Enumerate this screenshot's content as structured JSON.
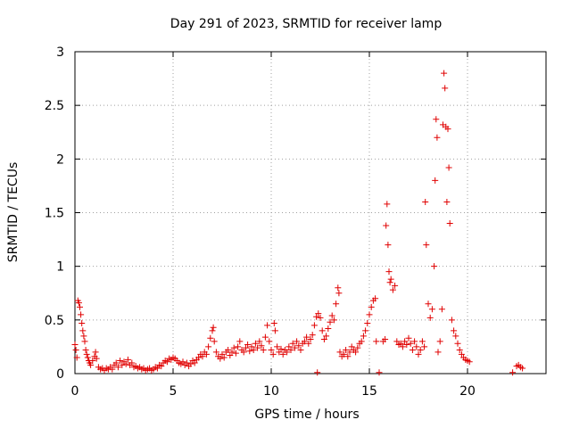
{
  "chart_data": {
    "type": "scatter",
    "title": "Day 291 of 2023, SRMTID for receiver lamp",
    "xlabel": "GPS time / hours",
    "ylabel": "SRMTID / TECUs",
    "xlim": [
      0,
      24
    ],
    "ylim": [
      0,
      3
    ],
    "xticks": [
      0,
      5,
      10,
      15,
      20
    ],
    "xtick_labels": [
      "0",
      "5",
      "10",
      "15",
      "20"
    ],
    "yticks": [
      0,
      0.5,
      1,
      1.5,
      2,
      2.5,
      3
    ],
    "ytick_labels": [
      "0",
      "0.5",
      "1",
      "1.5",
      "2",
      "2.5",
      "3"
    ],
    "grid": true,
    "marker": "plus",
    "color": "#e00000",
    "series": [
      {
        "name": "lamp",
        "points": [
          [
            0.0,
            0.27
          ],
          [
            0.05,
            0.22
          ],
          [
            0.1,
            0.15
          ],
          [
            0.15,
            0.68
          ],
          [
            0.2,
            0.66
          ],
          [
            0.25,
            0.62
          ],
          [
            0.3,
            0.55
          ],
          [
            0.35,
            0.47
          ],
          [
            0.4,
            0.4
          ],
          [
            0.45,
            0.35
          ],
          [
            0.5,
            0.3
          ],
          [
            0.55,
            0.22
          ],
          [
            0.6,
            0.18
          ],
          [
            0.65,
            0.15
          ],
          [
            0.7,
            0.12
          ],
          [
            0.75,
            0.1
          ],
          [
            0.8,
            0.08
          ],
          [
            0.9,
            0.12
          ],
          [
            1.0,
            0.16
          ],
          [
            1.05,
            0.2
          ],
          [
            1.1,
            0.14
          ],
          [
            1.2,
            0.06
          ],
          [
            1.3,
            0.04
          ],
          [
            1.4,
            0.05
          ],
          [
            1.5,
            0.03
          ],
          [
            1.6,
            0.05
          ],
          [
            1.7,
            0.04
          ],
          [
            1.8,
            0.06
          ],
          [
            1.9,
            0.04
          ],
          [
            2.0,
            0.08
          ],
          [
            2.1,
            0.1
          ],
          [
            2.2,
            0.06
          ],
          [
            2.3,
            0.12
          ],
          [
            2.4,
            0.08
          ],
          [
            2.5,
            0.11
          ],
          [
            2.6,
            0.09
          ],
          [
            2.7,
            0.13
          ],
          [
            2.8,
            0.08
          ],
          [
            2.9,
            0.1
          ],
          [
            3.0,
            0.06
          ],
          [
            3.1,
            0.07
          ],
          [
            3.2,
            0.05
          ],
          [
            3.3,
            0.06
          ],
          [
            3.4,
            0.04
          ],
          [
            3.5,
            0.05
          ],
          [
            3.6,
            0.03
          ],
          [
            3.7,
            0.04
          ],
          [
            3.8,
            0.05
          ],
          [
            3.9,
            0.03
          ],
          [
            4.0,
            0.04
          ],
          [
            4.1,
            0.06
          ],
          [
            4.2,
            0.05
          ],
          [
            4.3,
            0.08
          ],
          [
            4.4,
            0.07
          ],
          [
            4.5,
            0.1
          ],
          [
            4.6,
            0.12
          ],
          [
            4.7,
            0.11
          ],
          [
            4.8,
            0.14
          ],
          [
            4.9,
            0.13
          ],
          [
            5.0,
            0.15
          ],
          [
            5.1,
            0.14
          ],
          [
            5.2,
            0.12
          ],
          [
            5.3,
            0.1
          ],
          [
            5.4,
            0.09
          ],
          [
            5.5,
            0.11
          ],
          [
            5.6,
            0.08
          ],
          [
            5.7,
            0.1
          ],
          [
            5.8,
            0.07
          ],
          [
            5.9,
            0.09
          ],
          [
            6.0,
            0.12
          ],
          [
            6.1,
            0.1
          ],
          [
            6.2,
            0.13
          ],
          [
            6.3,
            0.15
          ],
          [
            6.4,
            0.18
          ],
          [
            6.5,
            0.16
          ],
          [
            6.6,
            0.2
          ],
          [
            6.7,
            0.18
          ],
          [
            6.8,
            0.25
          ],
          [
            6.9,
            0.33
          ],
          [
            7.0,
            0.4
          ],
          [
            7.05,
            0.43
          ],
          [
            7.1,
            0.3
          ],
          [
            7.2,
            0.2
          ],
          [
            7.3,
            0.16
          ],
          [
            7.4,
            0.14
          ],
          [
            7.5,
            0.18
          ],
          [
            7.6,
            0.15
          ],
          [
            7.7,
            0.2
          ],
          [
            7.8,
            0.22
          ],
          [
            7.9,
            0.17
          ],
          [
            8.0,
            0.2
          ],
          [
            8.1,
            0.24
          ],
          [
            8.2,
            0.19
          ],
          [
            8.3,
            0.25
          ],
          [
            8.4,
            0.3
          ],
          [
            8.5,
            0.22
          ],
          [
            8.6,
            0.2
          ],
          [
            8.7,
            0.24
          ],
          [
            8.8,
            0.27
          ],
          [
            8.9,
            0.21
          ],
          [
            9.0,
            0.25
          ],
          [
            9.1,
            0.22
          ],
          [
            9.2,
            0.28
          ],
          [
            9.3,
            0.24
          ],
          [
            9.4,
            0.3
          ],
          [
            9.5,
            0.26
          ],
          [
            9.6,
            0.22
          ],
          [
            9.7,
            0.34
          ],
          [
            9.8,
            0.45
          ],
          [
            9.9,
            0.3
          ],
          [
            10.0,
            0.22
          ],
          [
            10.1,
            0.18
          ],
          [
            10.15,
            0.47
          ],
          [
            10.2,
            0.4
          ],
          [
            10.3,
            0.25
          ],
          [
            10.4,
            0.2
          ],
          [
            10.5,
            0.23
          ],
          [
            10.6,
            0.18
          ],
          [
            10.7,
            0.22
          ],
          [
            10.8,
            0.2
          ],
          [
            10.9,
            0.25
          ],
          [
            11.0,
            0.22
          ],
          [
            11.1,
            0.28
          ],
          [
            11.2,
            0.24
          ],
          [
            11.3,
            0.3
          ],
          [
            11.4,
            0.26
          ],
          [
            11.5,
            0.22
          ],
          [
            11.6,
            0.28
          ],
          [
            11.7,
            0.3
          ],
          [
            11.8,
            0.34
          ],
          [
            11.9,
            0.28
          ],
          [
            12.0,
            0.32
          ],
          [
            12.1,
            0.36
          ],
          [
            12.2,
            0.45
          ],
          [
            12.3,
            0.53
          ],
          [
            12.4,
            0.56
          ],
          [
            12.5,
            0.52
          ],
          [
            12.6,
            0.4
          ],
          [
            12.7,
            0.32
          ],
          [
            12.8,
            0.35
          ],
          [
            12.9,
            0.42
          ],
          [
            13.0,
            0.48
          ],
          [
            13.1,
            0.54
          ],
          [
            13.2,
            0.5
          ],
          [
            13.3,
            0.65
          ],
          [
            13.4,
            0.8
          ],
          [
            13.45,
            0.75
          ],
          [
            13.5,
            0.2
          ],
          [
            13.6,
            0.16
          ],
          [
            13.7,
            0.18
          ],
          [
            13.8,
            0.22
          ],
          [
            13.9,
            0.16
          ],
          [
            14.0,
            0.2
          ],
          [
            14.1,
            0.25
          ],
          [
            14.2,
            0.22
          ],
          [
            14.3,
            0.2
          ],
          [
            14.4,
            0.24
          ],
          [
            14.5,
            0.28
          ],
          [
            14.6,
            0.3
          ],
          [
            14.7,
            0.35
          ],
          [
            14.8,
            0.4
          ],
          [
            14.9,
            0.47
          ],
          [
            15.0,
            0.55
          ],
          [
            15.1,
            0.62
          ],
          [
            15.2,
            0.68
          ],
          [
            15.3,
            0.7
          ],
          [
            15.35,
            0.3
          ],
          [
            15.5,
            0.01
          ],
          [
            15.7,
            0.3
          ],
          [
            15.8,
            0.32
          ],
          [
            15.85,
            1.38
          ],
          [
            15.9,
            1.58
          ],
          [
            15.95,
            1.2
          ],
          [
            16.0,
            0.95
          ],
          [
            16.05,
            0.85
          ],
          [
            16.1,
            0.88
          ],
          [
            16.2,
            0.78
          ],
          [
            16.3,
            0.82
          ],
          [
            16.4,
            0.3
          ],
          [
            16.5,
            0.27
          ],
          [
            16.6,
            0.28
          ],
          [
            16.7,
            0.25
          ],
          [
            16.8,
            0.3
          ],
          [
            16.9,
            0.27
          ],
          [
            17.0,
            0.33
          ],
          [
            17.1,
            0.28
          ],
          [
            17.2,
            0.22
          ],
          [
            17.3,
            0.3
          ],
          [
            17.4,
            0.25
          ],
          [
            17.5,
            0.18
          ],
          [
            17.6,
            0.22
          ],
          [
            17.7,
            0.3
          ],
          [
            17.8,
            0.25
          ],
          [
            17.85,
            1.6
          ],
          [
            17.9,
            1.2
          ],
          [
            18.0,
            0.65
          ],
          [
            18.1,
            0.52
          ],
          [
            18.2,
            0.6
          ],
          [
            18.3,
            1.0
          ],
          [
            18.35,
            1.8
          ],
          [
            18.4,
            2.37
          ],
          [
            18.45,
            2.2
          ],
          [
            18.5,
            0.2
          ],
          [
            18.6,
            0.3
          ],
          [
            18.7,
            0.6
          ],
          [
            18.75,
            2.32
          ],
          [
            18.8,
            2.8
          ],
          [
            18.85,
            2.66
          ],
          [
            18.9,
            2.3
          ],
          [
            18.95,
            1.6
          ],
          [
            19.0,
            2.28
          ],
          [
            19.05,
            1.92
          ],
          [
            19.1,
            1.4
          ],
          [
            19.2,
            0.5
          ],
          [
            19.3,
            0.4
          ],
          [
            19.4,
            0.35
          ],
          [
            19.5,
            0.28
          ],
          [
            19.6,
            0.22
          ],
          [
            19.7,
            0.18
          ],
          [
            19.8,
            0.15
          ],
          [
            19.9,
            0.13
          ],
          [
            20.0,
            0.12
          ],
          [
            20.1,
            0.11
          ],
          [
            12.35,
            0.01
          ],
          [
            22.3,
            0.01
          ],
          [
            22.5,
            0.07
          ],
          [
            22.6,
            0.08
          ],
          [
            22.7,
            0.06
          ],
          [
            22.8,
            0.05
          ]
        ]
      }
    ]
  }
}
